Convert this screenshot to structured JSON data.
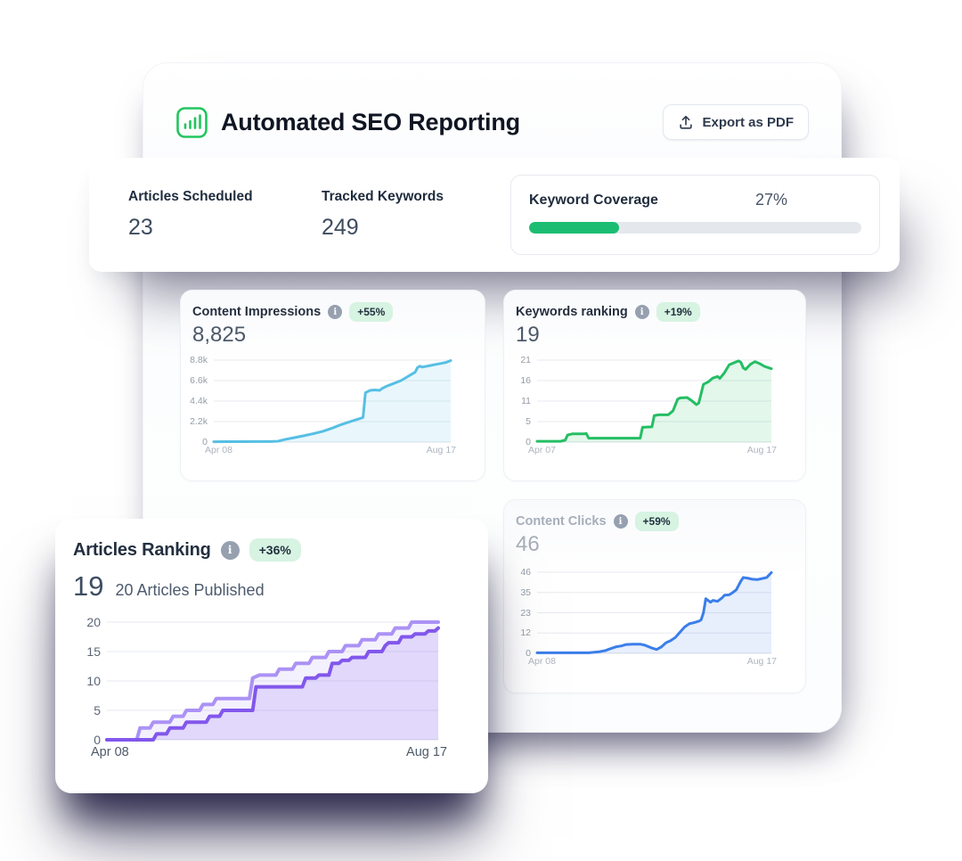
{
  "header": {
    "title": "Automated SEO Reporting",
    "export_label": "Export as PDF",
    "accent_green": "#22c55e"
  },
  "stats": {
    "articles_scheduled": {
      "label": "Articles Scheduled",
      "value": "23"
    },
    "tracked_keywords": {
      "label": "Tracked Keywords",
      "value": "249"
    },
    "keyword_coverage": {
      "label": "Keyword Coverage",
      "value": "27%",
      "percent": 27,
      "bar_color": "#1cbd72",
      "track_color": "#e4e8ed"
    }
  },
  "charts": {
    "impressions": {
      "type": "area",
      "title": "Content Impressions",
      "badge": "+55%",
      "value": "8,825",
      "yticks": [
        "8.8k",
        "6.6k",
        "4.4k",
        "2.2k",
        "0"
      ],
      "ymax": 8800,
      "xlabels": [
        "Apr 08",
        "Aug 17"
      ],
      "series": [
        {
          "name": "impressions",
          "color": "#56bfe4",
          "fill": "rgba(86,191,228,0.13)",
          "width": 3,
          "points": [
            [
              0,
              40
            ],
            [
              6,
              50
            ],
            [
              12,
              45
            ],
            [
              18,
              55
            ],
            [
              24,
              60
            ],
            [
              27,
              90
            ],
            [
              30,
              280
            ],
            [
              34,
              480
            ],
            [
              38,
              680
            ],
            [
              42,
              900
            ],
            [
              46,
              1150
            ],
            [
              50,
              1500
            ],
            [
              54,
              1900
            ],
            [
              57,
              2150
            ],
            [
              60,
              2400
            ],
            [
              62,
              2550
            ],
            [
              63,
              2650
            ],
            [
              64,
              5300
            ],
            [
              66,
              5550
            ],
            [
              68,
              5600
            ],
            [
              70,
              5550
            ],
            [
              71,
              5750
            ],
            [
              73,
              6000
            ],
            [
              75,
              6200
            ],
            [
              77,
              6400
            ],
            [
              79,
              6600
            ],
            [
              81,
              6900
            ],
            [
              83,
              7200
            ],
            [
              85,
              7500
            ],
            [
              86,
              8000
            ],
            [
              87,
              8150
            ],
            [
              88,
              8050
            ],
            [
              90,
              8150
            ],
            [
              92,
              8250
            ],
            [
              94,
              8350
            ],
            [
              96,
              8450
            ],
            [
              98,
              8550
            ],
            [
              100,
              8750
            ]
          ]
        }
      ]
    },
    "keywords": {
      "type": "area",
      "title": "Keywords ranking",
      "badge": "+19%",
      "value": "19",
      "yticks": [
        "21",
        "16",
        "11",
        "5",
        "0"
      ],
      "ymax": 21,
      "xlabels": [
        "Apr 07",
        "Aug 17"
      ],
      "series": [
        {
          "name": "keywords",
          "color": "#25be63",
          "fill": "rgba(37,190,99,0.13)",
          "width": 3,
          "points": [
            [
              0,
              0.2
            ],
            [
              10,
              0.2
            ],
            [
              12,
              0.5
            ],
            [
              13,
              1.8
            ],
            [
              15,
              2.1
            ],
            [
              20,
              2.1
            ],
            [
              21,
              2.2
            ],
            [
              22,
              1
            ],
            [
              30,
              1
            ],
            [
              40,
              1
            ],
            [
              44,
              1
            ],
            [
              45,
              3.8
            ],
            [
              49,
              3.9
            ],
            [
              50,
              6.8
            ],
            [
              52,
              7
            ],
            [
              56,
              7
            ],
            [
              58,
              8
            ],
            [
              60,
              11
            ],
            [
              61,
              11.3
            ],
            [
              64,
              11.4
            ],
            [
              66,
              10.6
            ],
            [
              68,
              9.6
            ],
            [
              69,
              10
            ],
            [
              71,
              14.8
            ],
            [
              73,
              15.4
            ],
            [
              75,
              16.4
            ],
            [
              77,
              16.8
            ],
            [
              78,
              16.3
            ],
            [
              80,
              17.8
            ],
            [
              82,
              19.8
            ],
            [
              84,
              20.3
            ],
            [
              86,
              20.8
            ],
            [
              87,
              20.4
            ],
            [
              88,
              19
            ],
            [
              89,
              18.6
            ],
            [
              91,
              19.9
            ],
            [
              93,
              20.6
            ],
            [
              95,
              20.1
            ],
            [
              97,
              19.4
            ],
            [
              100,
              18.8
            ]
          ]
        }
      ]
    },
    "clicks": {
      "type": "area",
      "title": "Content Clicks",
      "badge": "+59%",
      "value": "46",
      "yticks": [
        "46",
        "35",
        "23",
        "12",
        "0"
      ],
      "ymax": 46,
      "xlabels": [
        "Apr 08",
        "Aug 17"
      ],
      "series": [
        {
          "name": "clicks",
          "color": "#3b7eea",
          "fill": "rgba(59,126,234,0.12)",
          "width": 3,
          "points": [
            [
              0,
              0.3
            ],
            [
              12,
              0.3
            ],
            [
              22,
              0.3
            ],
            [
              26,
              0.8
            ],
            [
              29,
              1.5
            ],
            [
              31,
              2.5
            ],
            [
              34,
              3.8
            ],
            [
              36,
              4.2
            ],
            [
              38,
              5
            ],
            [
              41,
              5.2
            ],
            [
              44,
              5.2
            ],
            [
              46,
              4.6
            ],
            [
              49,
              3
            ],
            [
              51,
              2.2
            ],
            [
              53,
              3.6
            ],
            [
              55,
              6
            ],
            [
              57,
              7.2
            ],
            [
              59,
              9
            ],
            [
              61,
              12
            ],
            [
              63,
              15
            ],
            [
              65,
              16.8
            ],
            [
              67,
              17.4
            ],
            [
              69,
              18.2
            ],
            [
              70,
              19
            ],
            [
              71,
              23
            ],
            [
              72,
              31
            ],
            [
              73,
              30
            ],
            [
              74,
              29
            ],
            [
              75,
              30
            ],
            [
              77,
              29.5
            ],
            [
              78,
              30.5
            ],
            [
              79,
              31.5
            ],
            [
              80,
              33
            ],
            [
              82,
              33.2
            ],
            [
              83,
              34
            ],
            [
              85,
              36
            ],
            [
              86,
              38.5
            ],
            [
              87,
              41
            ],
            [
              88,
              43
            ],
            [
              90,
              42.6
            ],
            [
              92,
              42
            ],
            [
              94,
              41.8
            ],
            [
              96,
              42.4
            ],
            [
              98,
              43
            ],
            [
              100,
              45.8
            ]
          ]
        }
      ]
    },
    "articles": {
      "type": "area",
      "title": "Articles Ranking",
      "badge": "+36%",
      "value": "19",
      "subtitle": "20 Articles Published",
      "yticks": [
        "20",
        "15",
        "10",
        "5",
        "0"
      ],
      "ymax": 20,
      "xlabels": [
        "Apr 08",
        "Aug 17"
      ],
      "series": [
        {
          "name": "articles-published",
          "color": "#ab92f5",
          "fill": "rgba(171,146,245,0.13)",
          "width": 4,
          "points": [
            [
              0,
              0
            ],
            [
              9,
              0
            ],
            [
              10,
              2
            ],
            [
              13,
              2
            ],
            [
              14,
              3
            ],
            [
              19,
              3
            ],
            [
              20,
              4
            ],
            [
              23,
              4
            ],
            [
              24,
              5
            ],
            [
              28,
              5
            ],
            [
              29,
              6
            ],
            [
              32,
              6
            ],
            [
              33,
              7
            ],
            [
              43,
              7
            ],
            [
              44,
              10.5
            ],
            [
              46,
              11
            ],
            [
              51,
              11
            ],
            [
              52,
              12
            ],
            [
              56,
              12
            ],
            [
              57,
              13
            ],
            [
              61,
              13
            ],
            [
              62,
              14
            ],
            [
              66,
              14
            ],
            [
              67,
              15
            ],
            [
              71,
              15
            ],
            [
              72,
              16
            ],
            [
              76,
              16
            ],
            [
              77,
              17
            ],
            [
              81,
              17
            ],
            [
              82,
              18
            ],
            [
              86,
              18
            ],
            [
              87,
              19
            ],
            [
              91,
              19
            ],
            [
              92,
              20
            ],
            [
              100,
              20
            ]
          ]
        },
        {
          "name": "articles-ranking",
          "color": "#8257ec",
          "fill": "rgba(130,87,236,0.16)",
          "width": 4,
          "points": [
            [
              0,
              0
            ],
            [
              14,
              0
            ],
            [
              15,
              1
            ],
            [
              18,
              1
            ],
            [
              19,
              2
            ],
            [
              23,
              2
            ],
            [
              24,
              3
            ],
            [
              30,
              3
            ],
            [
              31,
              4
            ],
            [
              34,
              4
            ],
            [
              35,
              5
            ],
            [
              44,
              5
            ],
            [
              45,
              9
            ],
            [
              59,
              9
            ],
            [
              60,
              10.5
            ],
            [
              63,
              10.5
            ],
            [
              64,
              11
            ],
            [
              67,
              11
            ],
            [
              68,
              13
            ],
            [
              70,
              13
            ],
            [
              71,
              13.5
            ],
            [
              73,
              13.5
            ],
            [
              74,
              14
            ],
            [
              78,
              14
            ],
            [
              79,
              15
            ],
            [
              83,
              15
            ],
            [
              84,
              16
            ],
            [
              85,
              16.5
            ],
            [
              88,
              16.5
            ],
            [
              89,
              17.5
            ],
            [
              92,
              17.5
            ],
            [
              93,
              18
            ],
            [
              96,
              18
            ],
            [
              97,
              18.5
            ],
            [
              99,
              18.5
            ],
            [
              100,
              19
            ]
          ]
        }
      ]
    }
  }
}
